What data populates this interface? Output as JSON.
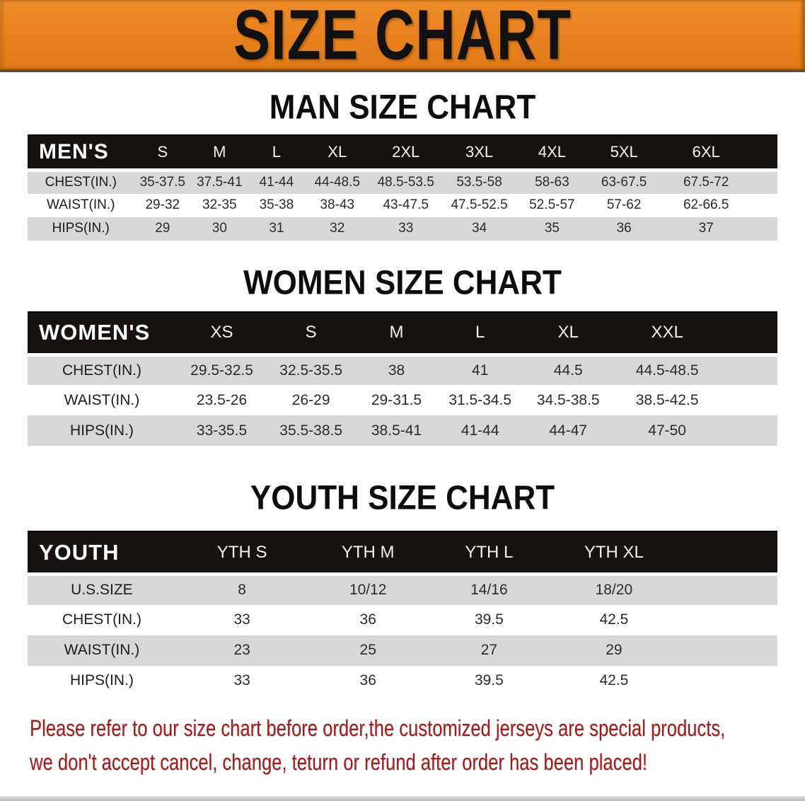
{
  "banner": {
    "title": "SIZE CHART"
  },
  "sections": [
    {
      "heading": "MAN SIZE CHART",
      "header_label": "MEN'S",
      "columns": [
        "S",
        "M",
        "L",
        "XL",
        "2XL",
        "3XL",
        "4XL",
        "5XL",
        "6XL"
      ],
      "rows": [
        {
          "label": "CHEST(IN.)",
          "values": [
            "35-37.5",
            "37.5-41",
            "41-44",
            "44-48.5",
            "48.5-53.5",
            "53.5-58",
            "58-63",
            "63-67.5",
            "67.5-72"
          ]
        },
        {
          "label": "WAIST(IN.)",
          "values": [
            "29-32",
            "32-35",
            "35-38",
            "38-43",
            "43-47.5",
            "47.5-52.5",
            "52.5-57",
            "57-62",
            "62-66.5"
          ]
        },
        {
          "label": "HIPS(IN.)",
          "values": [
            "29",
            "30",
            "31",
            "32",
            "33",
            "34",
            "35",
            "36",
            "37"
          ]
        }
      ]
    },
    {
      "heading": "WOMEN SIZE CHART",
      "header_label": "WOMEN'S",
      "columns": [
        "XS",
        "S",
        "M",
        "L",
        "XL",
        "XXL"
      ],
      "rows": [
        {
          "label": "CHEST(IN.)",
          "values": [
            "29.5-32.5",
            "32.5-35.5",
            "38",
            "41",
            "44.5",
            "44.5-48.5"
          ]
        },
        {
          "label": "WAIST(IN.)",
          "values": [
            "23.5-26",
            "26-29",
            "29-31.5",
            "31.5-34.5",
            "34.5-38.5",
            "38.5-42.5"
          ]
        },
        {
          "label": "HIPS(IN.)",
          "values": [
            "33-35.5",
            "35.5-38.5",
            "38.5-41",
            "41-44",
            "44-47",
            "47-50"
          ]
        }
      ]
    },
    {
      "heading": "YOUTH SIZE CHART",
      "header_label": "YOUTH",
      "columns": [
        "YTH S",
        "YTH M",
        "YTH L",
        "YTH XL"
      ],
      "rows": [
        {
          "label": "U.S.SIZE",
          "values": [
            "8",
            "10/12",
            "14/16",
            "18/20"
          ]
        },
        {
          "label": "CHEST(IN.)",
          "values": [
            "33",
            "36",
            "39.5",
            "42.5"
          ]
        },
        {
          "label": "WAIST(IN.)",
          "values": [
            "23",
            "25",
            "27",
            "29"
          ]
        },
        {
          "label": "HIPS(IN.)",
          "values": [
            "33",
            "36",
            "39.5",
            "42.5"
          ]
        }
      ]
    }
  ],
  "disclaimer": {
    "line1": "Please refer to our size chart before order,the customized jerseys are special products,",
    "line2": "we don't accept cancel, change, teturn or refund after order has been placed!"
  },
  "colors": {
    "banner_bg": "#e8821e",
    "header_bar": "#171310",
    "row_alt": "#d7d7d7",
    "disclaimer_color": "#9e1b1b"
  }
}
